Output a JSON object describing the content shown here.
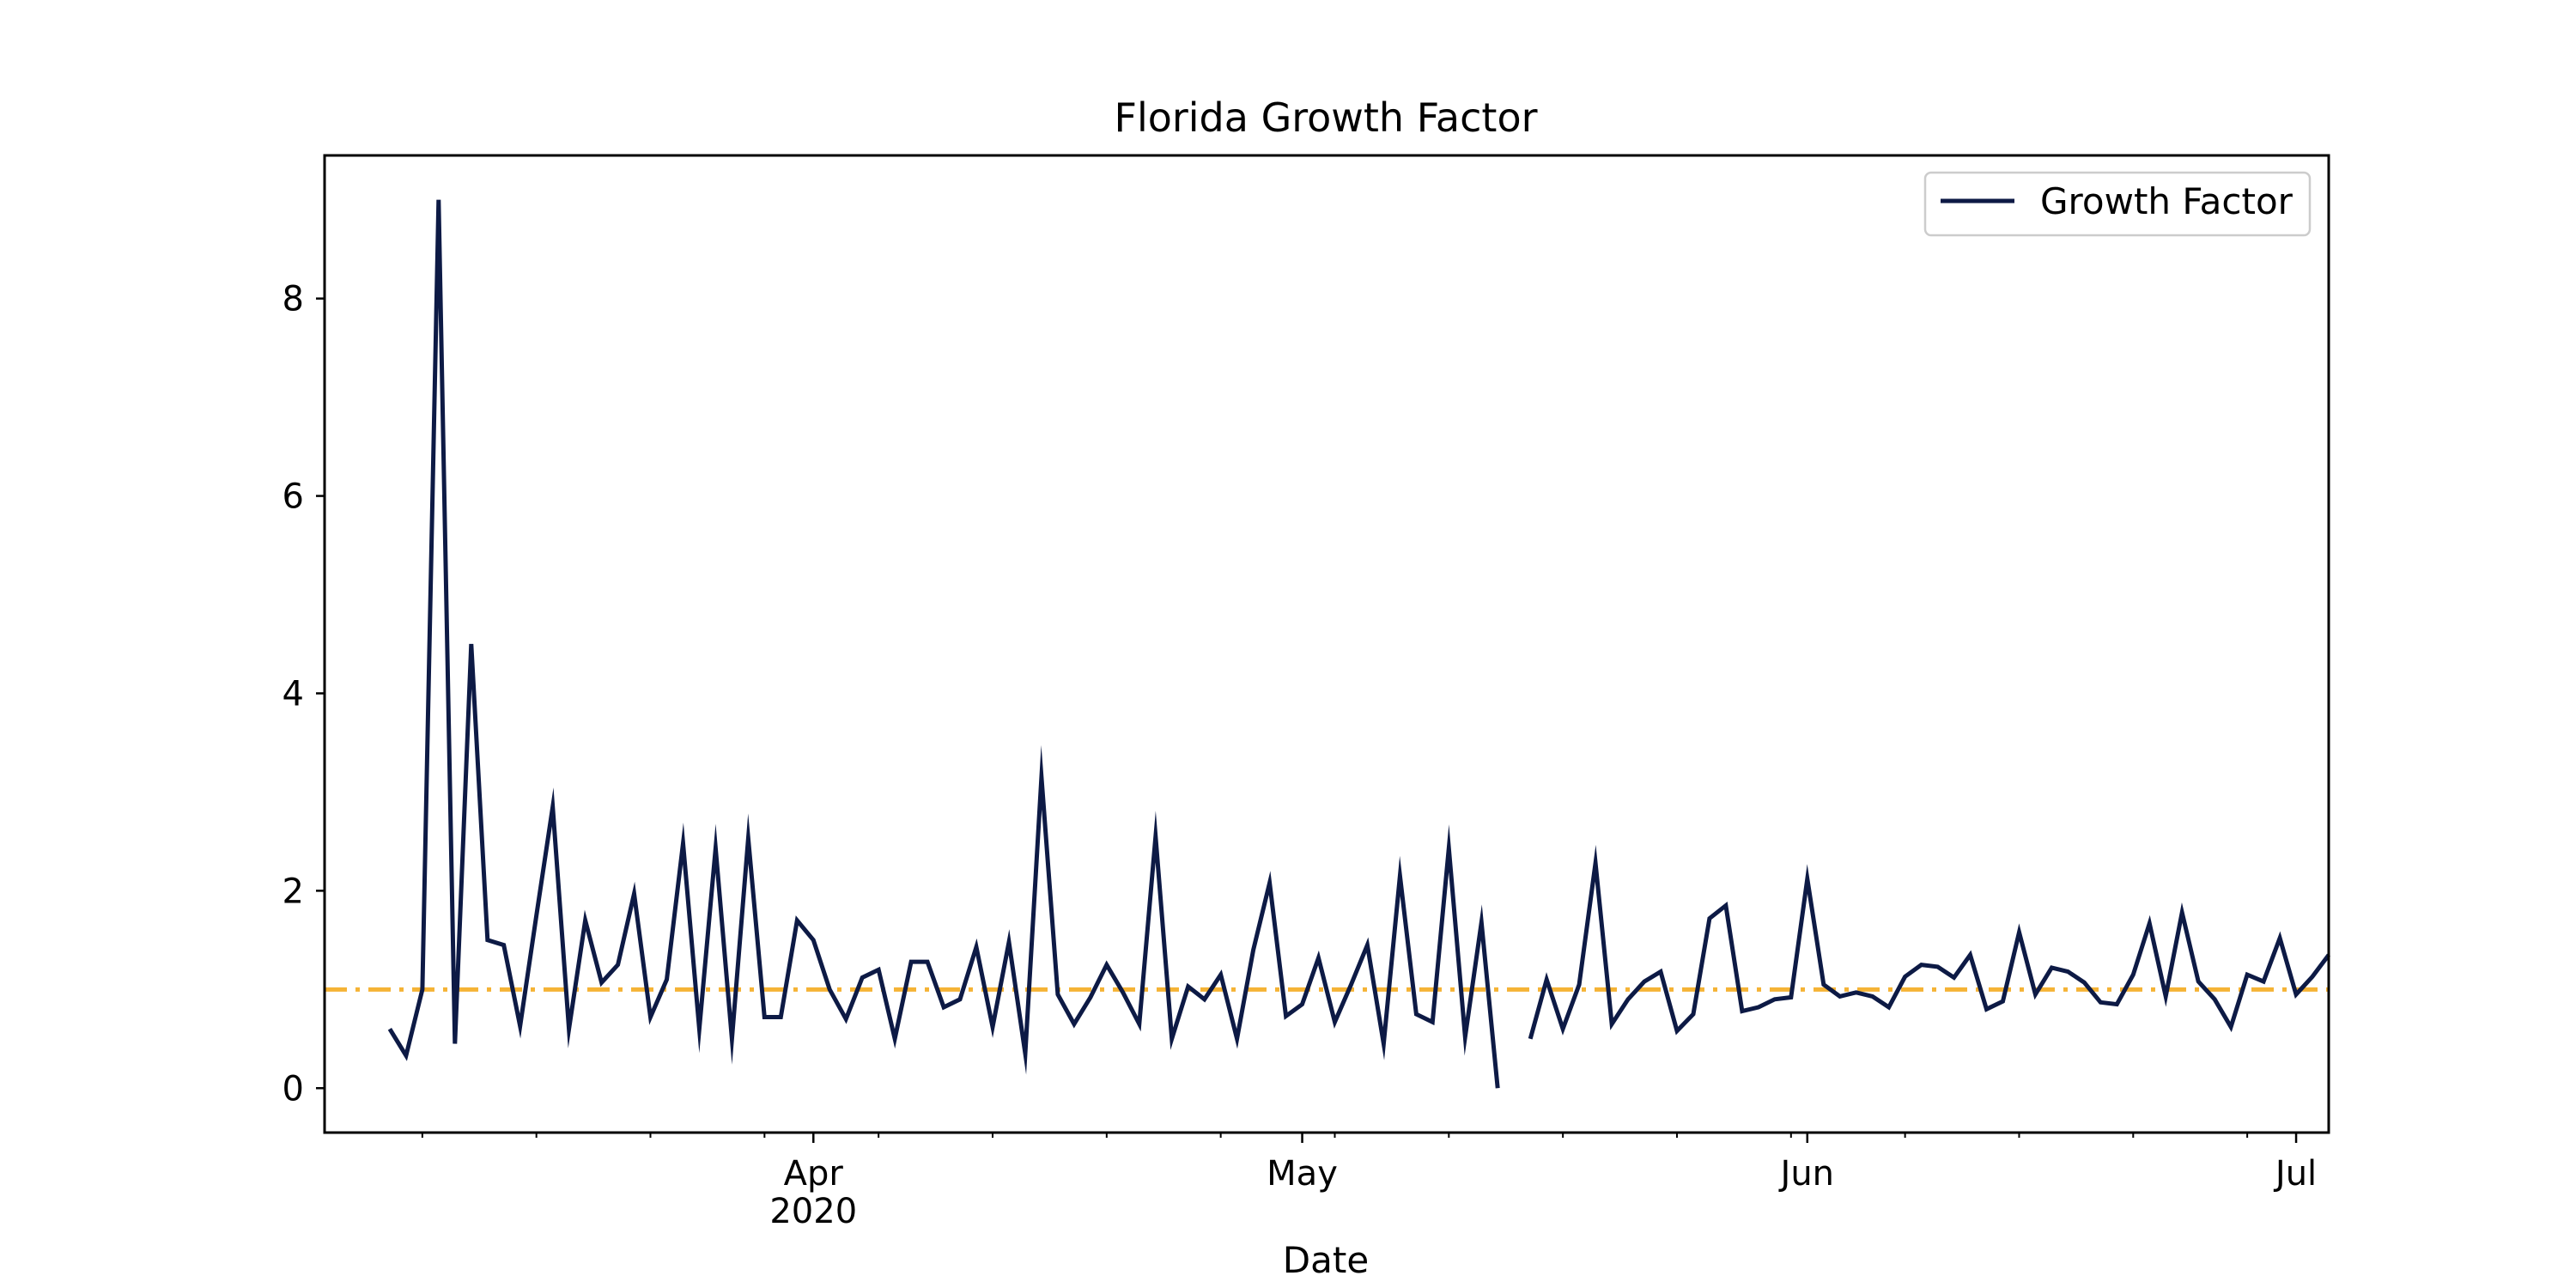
{
  "chart_data": {
    "type": "line",
    "title": "Florida Growth Factor",
    "xlabel": "Date",
    "ylabel": "",
    "x_start": "2020-03-02",
    "xlim": [
      "2020-03-02",
      "2020-07-03"
    ],
    "ylim": [
      -0.45,
      9.45
    ],
    "y_ticks": [
      0,
      2,
      4,
      6,
      8
    ],
    "x_major_ticks": [
      {
        "date": "2020-04-01",
        "label": "Apr",
        "sublabel": "2020"
      },
      {
        "date": "2020-05-01",
        "label": "May",
        "sublabel": ""
      },
      {
        "date": "2020-06-01",
        "label": "Jun",
        "sublabel": ""
      },
      {
        "date": "2020-07-01",
        "label": "Jul",
        "sublabel": ""
      }
    ],
    "x_minor_ticks": [
      "2020-03-08",
      "2020-03-15",
      "2020-03-22",
      "2020-03-29",
      "2020-04-05",
      "2020-04-12",
      "2020-04-19",
      "2020-04-26",
      "2020-05-03",
      "2020-05-10",
      "2020-05-17",
      "2020-05-24",
      "2020-05-31",
      "2020-06-07",
      "2020-06-14",
      "2020-06-21",
      "2020-06-28"
    ],
    "series": [
      {
        "name": "Growth Factor",
        "color": "#0d1a45",
        "style": "solid",
        "x": [
          "2020-03-06",
          "2020-03-07",
          "2020-03-08",
          "2020-03-09",
          "2020-03-10",
          "2020-03-11",
          "2020-03-12",
          "2020-03-13",
          "2020-03-14",
          "2020-03-15",
          "2020-03-16",
          "2020-03-17",
          "2020-03-18",
          "2020-03-19",
          "2020-03-20",
          "2020-03-21",
          "2020-03-22",
          "2020-03-23",
          "2020-03-24",
          "2020-03-25",
          "2020-03-26",
          "2020-03-27",
          "2020-03-28",
          "2020-03-29",
          "2020-03-30",
          "2020-03-31",
          "2020-04-01",
          "2020-04-02",
          "2020-04-03",
          "2020-04-04",
          "2020-04-05",
          "2020-04-06",
          "2020-04-07",
          "2020-04-08",
          "2020-04-09",
          "2020-04-10",
          "2020-04-11",
          "2020-04-12",
          "2020-04-13",
          "2020-04-14",
          "2020-04-15",
          "2020-04-16",
          "2020-04-17",
          "2020-04-18",
          "2020-04-19",
          "2020-04-20",
          "2020-04-21",
          "2020-04-22",
          "2020-04-23",
          "2020-04-24",
          "2020-04-25",
          "2020-04-26",
          "2020-04-27",
          "2020-04-28",
          "2020-04-29",
          "2020-04-30",
          "2020-05-01",
          "2020-05-02",
          "2020-05-03",
          "2020-05-04",
          "2020-05-05",
          "2020-05-06",
          "2020-05-07",
          "2020-05-08",
          "2020-05-09",
          "2020-05-10",
          "2020-05-11",
          "2020-05-12",
          "2020-05-13",
          "2020-05-14",
          "2020-05-15",
          "2020-05-16",
          "2020-05-17",
          "2020-05-18",
          "2020-05-19",
          "2020-05-20",
          "2020-05-21",
          "2020-05-22",
          "2020-05-23",
          "2020-05-24",
          "2020-05-25",
          "2020-05-26",
          "2020-05-27",
          "2020-05-28",
          "2020-05-29",
          "2020-05-30",
          "2020-05-31",
          "2020-06-01",
          "2020-06-02",
          "2020-06-03",
          "2020-06-04",
          "2020-06-05",
          "2020-06-06",
          "2020-06-07",
          "2020-06-08",
          "2020-06-09",
          "2020-06-10",
          "2020-06-11",
          "2020-06-12",
          "2020-06-13",
          "2020-06-14",
          "2020-06-15",
          "2020-06-16",
          "2020-06-17",
          "2020-06-18",
          "2020-06-19",
          "2020-06-20",
          "2020-06-21",
          "2020-06-22",
          "2020-06-23",
          "2020-06-24",
          "2020-06-25",
          "2020-06-26",
          "2020-06-27",
          "2020-06-28",
          "2020-06-29",
          "2020-06-30",
          "2020-07-01",
          "2020-07-02",
          "2020-07-03"
        ],
        "y": [
          0.6,
          0.33,
          1.0,
          9.0,
          0.45,
          4.5,
          1.5,
          1.45,
          0.63,
          1.75,
          2.85,
          0.6,
          1.7,
          1.07,
          1.25,
          1.97,
          0.72,
          1.1,
          2.48,
          0.6,
          2.43,
          0.5,
          2.53,
          0.72,
          0.72,
          1.7,
          1.5,
          1.0,
          0.7,
          1.12,
          1.2,
          0.5,
          1.28,
          1.28,
          0.82,
          0.9,
          1.43,
          0.62,
          1.48,
          0.35,
          3.15,
          0.95,
          0.65,
          0.92,
          1.25,
          0.97,
          0.65,
          2.55,
          0.5,
          1.03,
          0.9,
          1.15,
          0.5,
          1.4,
          2.08,
          0.73,
          0.85,
          1.32,
          0.67,
          1.05,
          1.45,
          0.45,
          2.15,
          0.75,
          0.67,
          2.43,
          0.52,
          1.68,
          0.0,
          null,
          0.5,
          1.1,
          0.6,
          1.05,
          2.28,
          0.65,
          0.9,
          1.08,
          1.18,
          0.58,
          0.75,
          1.72,
          1.85,
          0.78,
          0.82,
          0.9,
          0.92,
          2.12,
          1.05,
          0.93,
          0.97,
          0.93,
          0.82,
          1.13,
          1.25,
          1.23,
          1.12,
          1.35,
          0.8,
          0.88,
          1.58,
          0.95,
          1.22,
          1.18,
          1.07,
          0.87,
          0.85,
          1.15,
          1.67,
          0.93,
          1.78,
          1.08,
          0.9,
          0.62,
          1.15,
          1.08,
          1.52,
          0.95,
          1.13,
          1.35
        ]
      },
      {
        "name": "",
        "color": "#f5b335",
        "style": "dash-dot",
        "constant": 1.0
      }
    ],
    "legend": {
      "position": "top-right",
      "entries": [
        "Growth Factor"
      ]
    },
    "grid": false
  }
}
